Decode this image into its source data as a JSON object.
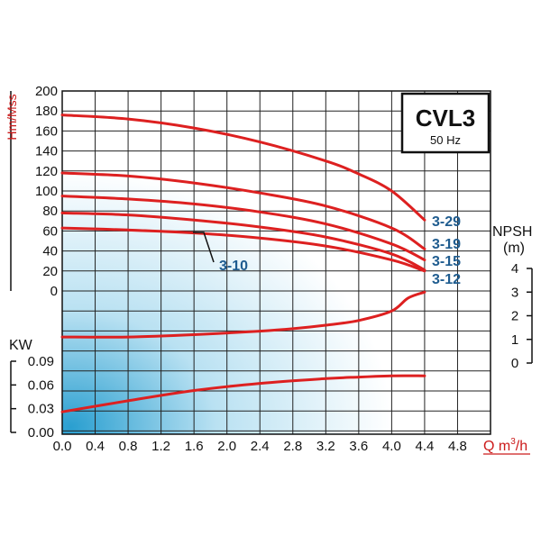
{
  "chart_data": {
    "type": "line",
    "title": "CVL3",
    "subtitle": "50 Hz",
    "xlabel": "Q m³/h",
    "xlabel_base": "Q m",
    "xlabel_sup": "3",
    "xlabel_tail": "/h",
    "xlim": [
      0,
      5.2
    ],
    "x_ticks": [
      "0.0",
      "0.4",
      "0.8",
      "1.2",
      "1.6",
      "2.0",
      "2.4",
      "2.8",
      "3.2",
      "3.6",
      "4.0",
      "4.4",
      "4.8"
    ],
    "head_axis": {
      "label": "Hm/Mss",
      "ylim": [
        0,
        200
      ],
      "ticks": [
        "200",
        "180",
        "160",
        "140",
        "120",
        "100",
        "80",
        "60",
        "40",
        "20",
        "0"
      ]
    },
    "npsh_axis": {
      "label": "NPSH",
      "unit": "(m)",
      "ylim": [
        0,
        4
      ],
      "ticks": [
        "4",
        "3",
        "2",
        "1",
        "0"
      ]
    },
    "power_axis": {
      "label": "KW",
      "ylim": [
        0,
        0.09
      ],
      "ticks": [
        "0.09",
        "0.06",
        "0.03",
        "0.00"
      ]
    },
    "grid": true,
    "series": [
      {
        "name": "3-29",
        "axis": "head",
        "x": [
          0,
          0.8,
          1.6,
          2.4,
          3.2,
          3.6,
          4.0,
          4.4
        ],
        "y": [
          176,
          172,
          163,
          149,
          130,
          117,
          100,
          71
        ]
      },
      {
        "name": "3-19",
        "axis": "head",
        "x": [
          0,
          0.8,
          1.6,
          2.4,
          3.2,
          4.0,
          4.4
        ],
        "y": [
          118,
          115,
          108,
          98,
          85,
          63,
          42
        ]
      },
      {
        "name": "3-15",
        "axis": "head",
        "x": [
          0,
          0.8,
          1.6,
          2.4,
          3.2,
          4.0,
          4.4
        ],
        "y": [
          95,
          92,
          87,
          79,
          67,
          47,
          31
        ]
      },
      {
        "name": "3-12",
        "axis": "head",
        "x": [
          0,
          0.8,
          1.6,
          2.4,
          3.2,
          4.0,
          4.4
        ],
        "y": [
          78,
          76,
          71,
          64,
          54,
          37,
          21
        ]
      },
      {
        "name": "3-10",
        "axis": "head",
        "x": [
          0,
          0.8,
          1.6,
          2.4,
          3.2,
          4.0,
          4.4
        ],
        "y": [
          63,
          61,
          58,
          53,
          45,
          31,
          20
        ]
      },
      {
        "name": "",
        "axis": "npsh",
        "x": [
          0,
          0.8,
          1.6,
          2.4,
          2.8,
          3.2,
          3.6,
          4.0,
          4.2,
          4.4
        ],
        "y": [
          1.1,
          1.1,
          1.2,
          1.35,
          1.45,
          1.6,
          1.8,
          2.2,
          2.75,
          3.0
        ]
      },
      {
        "name": "",
        "axis": "power",
        "x": [
          0,
          0.8,
          1.6,
          2.4,
          3.2,
          3.6,
          4.0,
          4.4
        ],
        "y": [
          0.026,
          0.04,
          0.053,
          0.062,
          0.068,
          0.07,
          0.0715,
          0.0715
        ]
      }
    ]
  },
  "colors": {
    "curve": "#dd2020",
    "label": "#1f5c8f",
    "axis_label": "#cc1a1a"
  }
}
